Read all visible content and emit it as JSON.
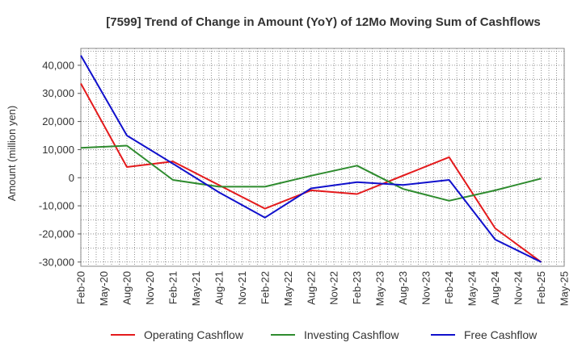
{
  "chart_data": {
    "type": "line",
    "title": "[7599]  Trend of Change in Amount (YoY) of 12Mo Moving Sum of Cashflows",
    "xlabel": "",
    "ylabel": "Amount (million yen)",
    "ylim": [
      -31500,
      46000
    ],
    "yticks": [
      40000,
      30000,
      20000,
      10000,
      0,
      -10000,
      -20000,
      -30000
    ],
    "ytick_labels": [
      "40,000",
      "30,000",
      "20,000",
      "10,000",
      "0",
      "-10,000",
      "-20,000",
      "-30,000"
    ],
    "categories": [
      "Feb-20",
      "May-20",
      "Aug-20",
      "Nov-20",
      "Feb-21",
      "May-21",
      "Aug-21",
      "Nov-21",
      "Feb-22",
      "May-22",
      "Aug-22",
      "Nov-22",
      "Feb-23",
      "May-23",
      "Aug-23",
      "Nov-23",
      "Feb-24",
      "May-24",
      "Aug-24",
      "Nov-24",
      "Feb-25",
      "May-25"
    ],
    "series": [
      {
        "name": "Operating Cashflow",
        "color": "#e41a1c",
        "values": [
          33500,
          null,
          3800,
          null,
          5800,
          null,
          null,
          null,
          -11000,
          null,
          -4500,
          null,
          -5800,
          null,
          null,
          null,
          7300,
          null,
          -18000,
          null,
          -30000,
          null
        ]
      },
      {
        "name": "Investing Cashflow",
        "color": "#2e8b2e",
        "values": [
          10600,
          null,
          11400,
          null,
          -800,
          null,
          -3200,
          null,
          -3200,
          null,
          700,
          null,
          4300,
          null,
          -4000,
          null,
          -8200,
          null,
          -4500,
          null,
          -300,
          null
        ]
      },
      {
        "name": "Free Cashflow",
        "color": "#1010cc",
        "values": [
          43500,
          null,
          15000,
          null,
          5000,
          null,
          -5200,
          null,
          -14200,
          null,
          -3800,
          null,
          -1600,
          null,
          -2600,
          null,
          -800,
          null,
          -22000,
          null,
          -30000,
          null
        ]
      }
    ],
    "grid": true,
    "legend_position": "bottom"
  }
}
